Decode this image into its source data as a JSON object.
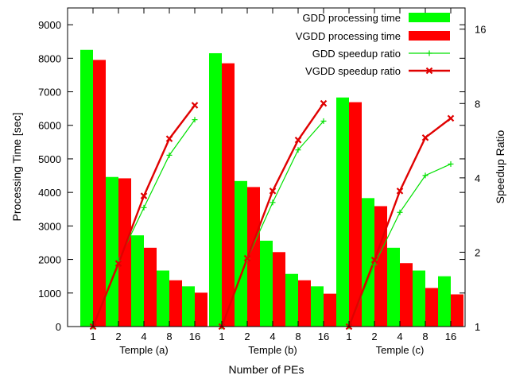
{
  "chart_data": {
    "type": "bar",
    "xlabel": "Number of PEs",
    "ylabel": "Processing Time [sec]",
    "y2label": "Speedup Ratio",
    "ylim": [
      0,
      9500
    ],
    "yticks": [
      0,
      1000,
      2000,
      3000,
      4000,
      5000,
      6000,
      7000,
      8000,
      9000
    ],
    "y2scale": "log2",
    "y2lim": [
      1,
      19.5
    ],
    "y2ticks": [
      1,
      2,
      4,
      8,
      16
    ],
    "grid": false,
    "legend_position": "top-right",
    "groups": [
      {
        "label": "Temple (a)",
        "pes": [
          "1",
          "2",
          "4",
          "8",
          "16"
        ],
        "gdd_time": [
          8250,
          4460,
          2720,
          1670,
          1200
        ],
        "vgdd_time": [
          7950,
          4420,
          2350,
          1380,
          1010
        ],
        "gdd_speedup": [
          1.0,
          1.85,
          3.03,
          4.94,
          6.88
        ],
        "vgdd_speedup": [
          1.0,
          1.8,
          3.38,
          5.76,
          7.87
        ]
      },
      {
        "label": "Temple (b)",
        "pes": [
          "1",
          "2",
          "4",
          "8",
          "16"
        ],
        "gdd_time": [
          8150,
          4340,
          2560,
          1570,
          1200
        ],
        "vgdd_time": [
          7850,
          4160,
          2220,
          1380,
          980
        ],
        "gdd_speedup": [
          1.0,
          1.88,
          3.18,
          5.19,
          6.79
        ],
        "vgdd_speedup": [
          1.0,
          1.89,
          3.54,
          5.69,
          8.01
        ]
      },
      {
        "label": "Temple (c)",
        "pes": [
          "1",
          "2",
          "4",
          "8",
          "16"
        ],
        "gdd_time": [
          6830,
          3830,
          2350,
          1670,
          1500
        ],
        "vgdd_time": [
          6690,
          3590,
          1890,
          1150,
          960
        ],
        "gdd_speedup": [
          1.0,
          1.78,
          2.9,
          4.09,
          4.55
        ],
        "vgdd_speedup": [
          1.0,
          1.86,
          3.54,
          5.82,
          6.97
        ]
      }
    ],
    "series": [
      {
        "key": "gdd_time",
        "name": "GDD processing time",
        "kind": "bar",
        "color": "#00ff00"
      },
      {
        "key": "vgdd_time",
        "name": "VGDD processing time",
        "kind": "bar",
        "color": "#ff0000"
      },
      {
        "key": "gdd_speedup",
        "name": "GDD speedup ratio",
        "kind": "line",
        "color": "#00e000",
        "marker": "plus"
      },
      {
        "key": "vgdd_speedup",
        "name": "VGDD speedup ratio",
        "kind": "line",
        "color": "#e00000",
        "marker": "cross"
      }
    ]
  }
}
